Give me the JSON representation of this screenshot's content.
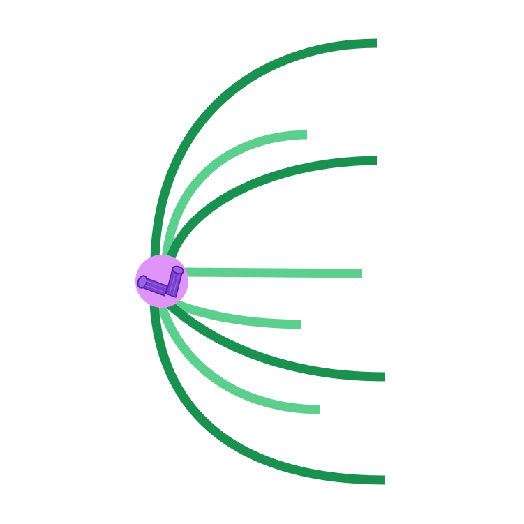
{
  "diagram": {
    "subject": "centrosome-with-microtubule-spindle",
    "colors": {
      "background": "#ffffff",
      "kinetochore_fiber": "#1a9150",
      "polar_fiber": "#5ccf8f",
      "centrosome_fill": "#df94f7",
      "centriole_fill": "#7b3fd0",
      "centriole_stroke": "#5a22aa",
      "centriole_barrel_light": "#9b62e2"
    },
    "fibers": [
      {
        "id": "kinetochore-fiber-1",
        "kind": "kinetochore"
      },
      {
        "id": "polar-fiber-1",
        "kind": "polar"
      },
      {
        "id": "kinetochore-fiber-2",
        "kind": "kinetochore"
      },
      {
        "id": "polar-fiber-2",
        "kind": "polar"
      },
      {
        "id": "polar-fiber-3",
        "kind": "polar"
      },
      {
        "id": "kinetochore-fiber-3",
        "kind": "kinetochore"
      },
      {
        "id": "polar-fiber-4",
        "kind": "polar"
      },
      {
        "id": "kinetochore-fiber-4",
        "kind": "kinetochore"
      }
    ],
    "centrioles": [
      {
        "id": "centriole-1"
      },
      {
        "id": "centriole-2"
      }
    ]
  }
}
